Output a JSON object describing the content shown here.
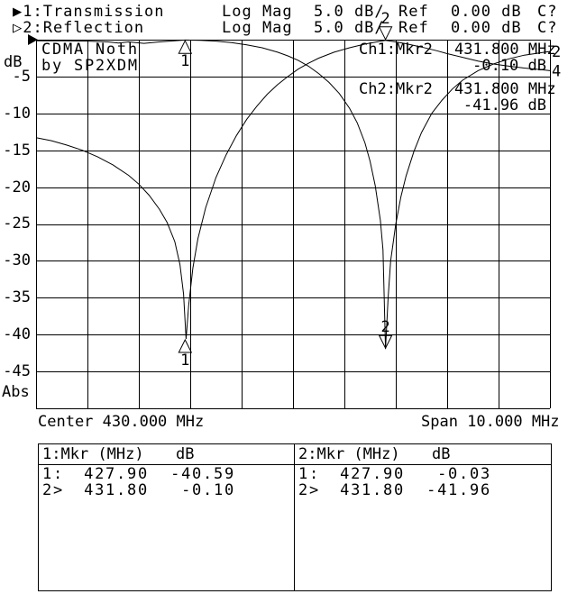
{
  "header": {
    "rows": [
      {
        "trace": "▶1:Transmission",
        "format": "Log Mag",
        "scale": "5.0 dB/",
        "ref_label": "Ref",
        "ref_value": "0.00 dB",
        "cal_status": "C?"
      },
      {
        "trace": "▷2:Reflection",
        "format": "Log Mag",
        "scale": "5.0 dB/",
        "ref_label": "Ref",
        "ref_value": "0.00 dB",
        "cal_status": "C?"
      }
    ]
  },
  "y_axis": {
    "unit": "dB",
    "abs_label": "Abs"
  },
  "x_axis": {
    "center_label": "Center 430.000 MHz",
    "span_label": "Span 10.000 MHz"
  },
  "title_block": {
    "line1": "CDMA Noth",
    "line2": "by SP2XDM"
  },
  "readouts": [
    {
      "label": "Ch1:Mkr2",
      "freq": "431.800 MHz",
      "value": "-0.10 dB"
    },
    {
      "label": "Ch2:Mkr2",
      "freq": "431.800 MHz",
      "value": "-41.96 dB"
    }
  ],
  "marker_tables": [
    {
      "title": "1:Mkr (MHz)",
      "unit": "dB",
      "rows": [
        {
          "id": "1:",
          "freq": "427.90",
          "value": "-40.59"
        },
        {
          "id": "2>",
          "freq": "431.80",
          "value": "-0.10"
        }
      ]
    },
    {
      "title": "2:Mkr (MHz)",
      "unit": "dB",
      "rows": [
        {
          "id": "1:",
          "freq": "427.90",
          "value": "-0.03"
        },
        {
          "id": "2>",
          "freq": "431.80",
          "value": "-41.96"
        }
      ]
    }
  ],
  "chart_data": {
    "type": "line",
    "title": "CDMA Noth by SP2XDM",
    "xlabel": "Frequency (MHz), Center 430.000 MHz, Span 10.000 MHz",
    "ylabel": "dB",
    "x_range": [
      425,
      435
    ],
    "y_range": [
      -50,
      0
    ],
    "scale_per_div": 5.0,
    "ref_level": 0.0,
    "y_ticks": [
      "-5",
      "-10",
      "-15",
      "-20",
      "-25",
      "-30",
      "-35",
      "-40",
      "-45"
    ],
    "grid": true,
    "series": [
      {
        "name": "Transmission",
        "x": [
          425,
          425.3,
          425.6,
          425.9,
          426.2,
          426.5,
          426.8,
          427.0,
          427.2,
          427.4,
          427.55,
          427.7,
          427.8,
          427.87,
          427.92,
          427.97,
          428.05,
          428.15,
          428.3,
          428.5,
          428.7,
          428.9,
          429.1,
          429.3,
          429.5,
          429.7,
          429.9,
          430.1,
          430.3,
          430.5,
          430.8,
          431.1,
          431.4,
          431.8,
          432.0,
          432.2,
          432.5,
          432.8,
          433.0,
          433.3,
          433.6,
          433.9,
          434.2,
          434.5,
          434.8,
          435.0
        ],
        "y": [
          -13.3,
          -13.7,
          -14.3,
          -15.0,
          -15.9,
          -17.0,
          -18.4,
          -19.6,
          -21.1,
          -23.0,
          -24.8,
          -27.4,
          -30.5,
          -34.5,
          -40.6,
          -36.0,
          -31.0,
          -27.0,
          -22.8,
          -18.7,
          -15.6,
          -13.0,
          -10.8,
          -9.0,
          -7.4,
          -6.1,
          -5.0,
          -4.0,
          -3.2,
          -2.5,
          -1.7,
          -1.1,
          -0.6,
          -0.1,
          -0.3,
          -0.55,
          -1.0,
          -1.5,
          -1.9,
          -2.4,
          -2.9,
          -3.3,
          -3.6,
          -3.85,
          -4.05,
          -4.2
        ]
      },
      {
        "name": "Reflection",
        "x": [
          425,
          425.5,
          426.0,
          426.4,
          426.6,
          426.8,
          427.1,
          427.4,
          427.9,
          428.2,
          428.5,
          428.8,
          429.1,
          429.4,
          429.7,
          429.9,
          430.1,
          430.3,
          430.5,
          430.7,
          430.9,
          431.1,
          431.25,
          431.4,
          431.5,
          431.6,
          431.7,
          431.75,
          431.8,
          431.85,
          431.9,
          432.0,
          432.1,
          432.2,
          432.35,
          432.5,
          432.7,
          432.9,
          433.1,
          433.3,
          433.6,
          433.9,
          434.2,
          434.5,
          434.9,
          435.0
        ],
        "y": [
          -0.15,
          -0.15,
          -0.2,
          -0.3,
          -0.45,
          -0.3,
          -0.5,
          -0.3,
          -0.05,
          -0.1,
          -0.2,
          -0.4,
          -0.7,
          -1.1,
          -1.7,
          -2.2,
          -2.8,
          -3.6,
          -4.6,
          -5.8,
          -7.3,
          -9.3,
          -11.3,
          -14.0,
          -16.5,
          -19.8,
          -24.5,
          -28.5,
          -41.96,
          -35.0,
          -30.0,
          -25.0,
          -21.3,
          -18.5,
          -15.2,
          -12.6,
          -10.0,
          -8.2,
          -6.7,
          -5.5,
          -4.2,
          -3.3,
          -2.6,
          -2.1,
          -1.7,
          -1.6
        ]
      }
    ],
    "markers": [
      {
        "channel": 1,
        "id": "1",
        "freq": 427.9,
        "db": -40.59,
        "glyph": "up"
      },
      {
        "channel": 1,
        "id": "2",
        "freq": 431.8,
        "db": -0.1,
        "glyph": "down"
      },
      {
        "channel": 2,
        "id": "1",
        "freq": 427.9,
        "db": -0.03,
        "glyph": "up"
      },
      {
        "channel": 2,
        "id": "2",
        "freq": 431.8,
        "db": -41.96,
        "glyph": "down"
      }
    ],
    "trace_end_labels": [
      {
        "text": "2",
        "series": 1
      },
      {
        "text": "4",
        "series": 0
      }
    ],
    "colors": {
      "foreground": "#000000",
      "background": "#ffffff"
    }
  }
}
